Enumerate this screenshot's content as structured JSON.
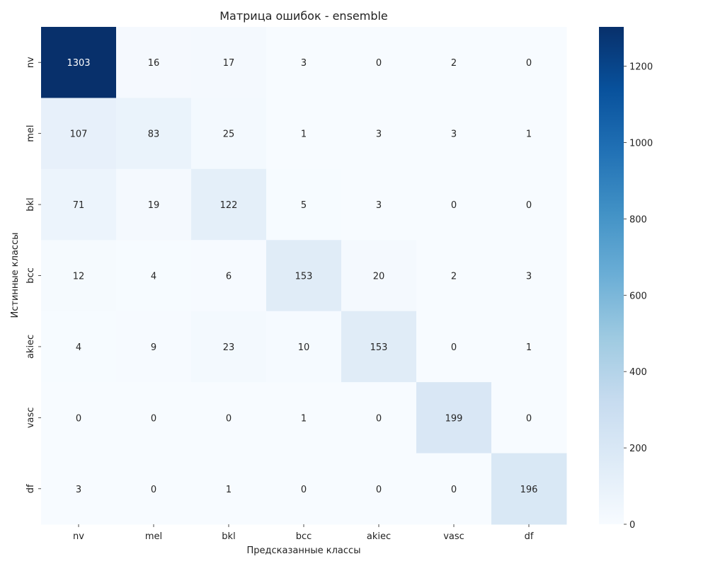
{
  "chart_data": {
    "type": "heatmap",
    "title": "Матрица ошибок - ensemble",
    "xlabel": "Предсказанные классы",
    "ylabel": "Истинные классы",
    "x_categories": [
      "nv",
      "mel",
      "bkl",
      "bcc",
      "akiec",
      "vasc",
      "df"
    ],
    "y_categories": [
      "nv",
      "mel",
      "bkl",
      "bcc",
      "akiec",
      "vasc",
      "df"
    ],
    "values": [
      [
        1303,
        16,
        17,
        3,
        0,
        2,
        0
      ],
      [
        107,
        83,
        25,
        1,
        3,
        3,
        1
      ],
      [
        71,
        19,
        122,
        5,
        3,
        0,
        0
      ],
      [
        12,
        4,
        6,
        153,
        20,
        2,
        3
      ],
      [
        4,
        9,
        23,
        10,
        153,
        0,
        1
      ],
      [
        0,
        0,
        0,
        1,
        0,
        199,
        0
      ],
      [
        3,
        0,
        1,
        0,
        0,
        0,
        196
      ]
    ],
    "colormap": "Blues",
    "colormap_stops": [
      "#f7fbff",
      "#deebf7",
      "#c6dbef",
      "#9ecae1",
      "#6baed6",
      "#4292c6",
      "#2171b5",
      "#08519c",
      "#08306b"
    ],
    "color_range": [
      0,
      1303
    ],
    "colorbar_ticks": [
      0,
      200,
      400,
      600,
      800,
      1000,
      1200
    ],
    "legend": "colorbar-right"
  }
}
